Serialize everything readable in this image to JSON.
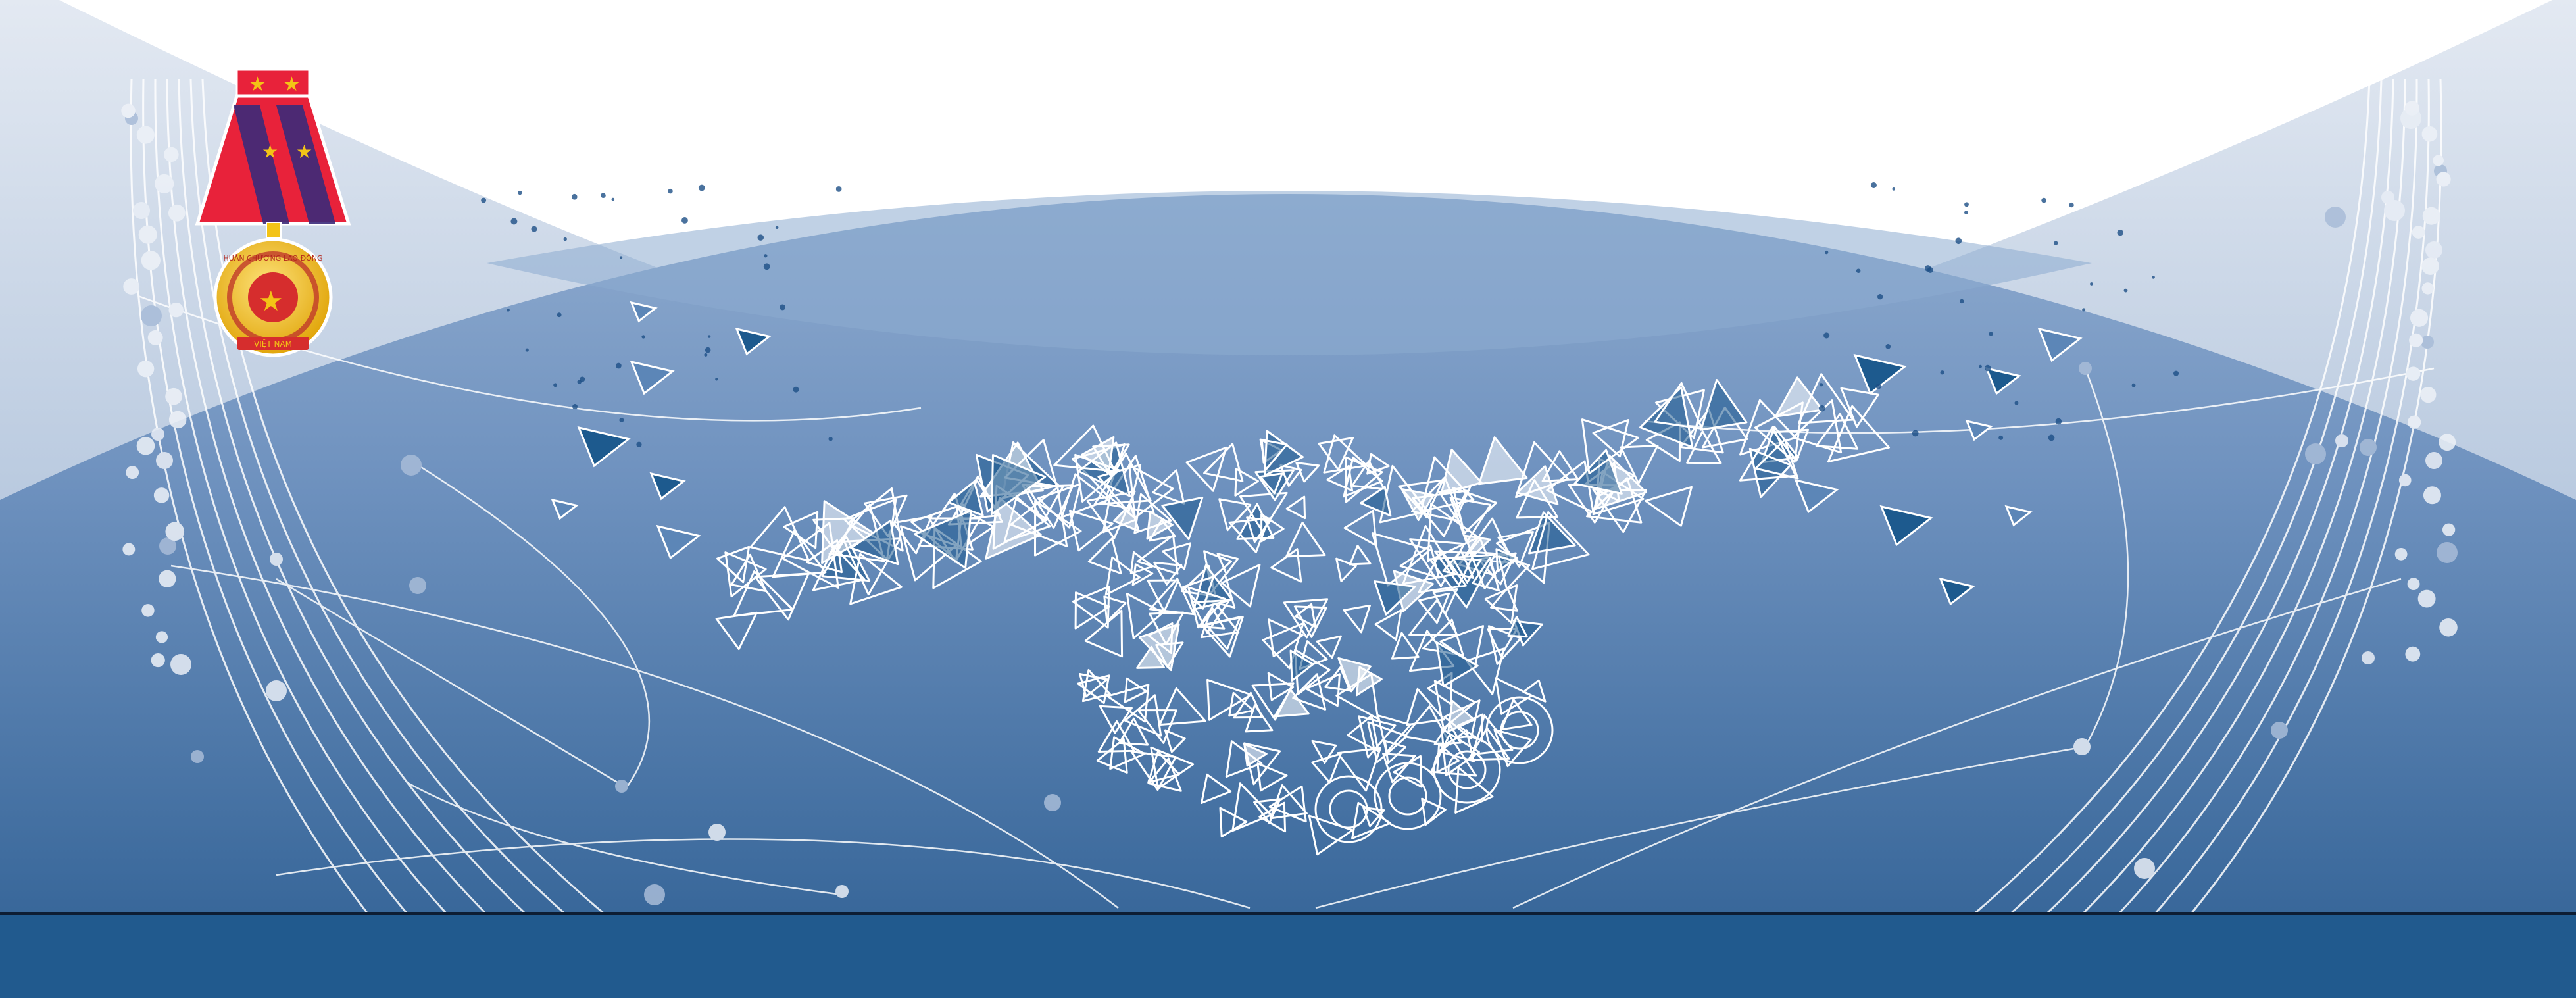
{
  "banner": {
    "colors": {
      "background": "#ffffff",
      "sky_light": "#d6dfed",
      "dome_top": "#8fabcf",
      "dome_bottom": "#2e5f93",
      "footer_band": "#215a8e",
      "network_lines": "#ffffff",
      "node_light": "#e9eef6",
      "node_mid": "#a8bcd8",
      "facet_dark": "#1d5a8e",
      "medal_ribbon_red": "#e8223a",
      "medal_ribbon_stripe": "#3b2a7a",
      "medal_gold": "#f3c316"
    },
    "icons": {
      "medal": "medal-icon",
      "handshake": "handshake-icon",
      "globe_network": "globe-network-icon"
    },
    "medal_text": {
      "ring": "HUÂN CHƯƠNG LAO ĐỘNG",
      "base": "VIỆT NAM"
    }
  }
}
